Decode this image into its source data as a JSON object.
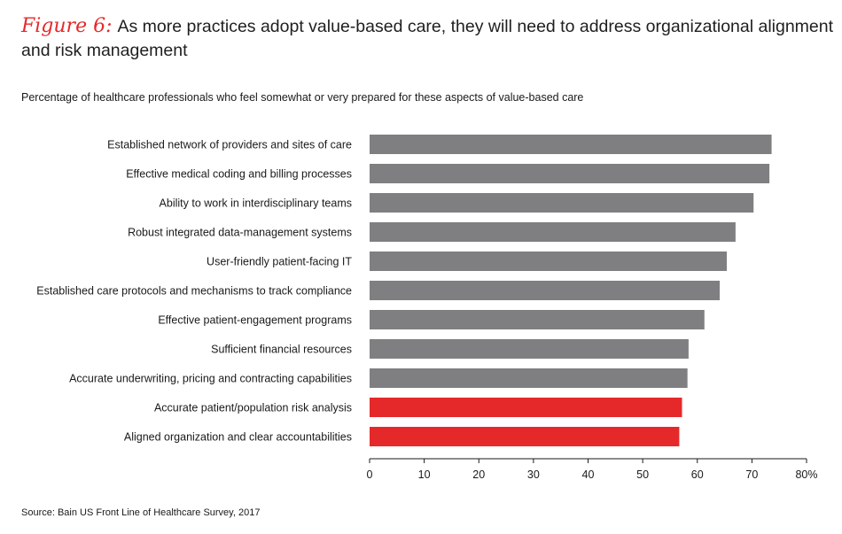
{
  "figure_label": "Figure 6:",
  "title": "As more practices adopt value-based care, they will need to address organizational alignment and risk management",
  "subtitle": "Percentage of healthcare professionals who feel somewhat or very prepared for these aspects of value-based care",
  "source": "Source: Bain US Front Line of Healthcare Survey, 2017",
  "colors": {
    "default_bar": "#7f7f82",
    "highlight_bar": "#e5292b",
    "figure_label": "#e5292b"
  },
  "chart_data": {
    "type": "bar",
    "orientation": "horizontal",
    "categories": [
      "Established network of providers and sites of care",
      "Effective medical coding and billing processes",
      "Ability to work in interdisciplinary teams",
      "Robust integrated data-management systems",
      "User-friendly patient-facing IT",
      "Established care protocols and mechanisms to track compliance",
      "Effective patient-engagement programs",
      "Sufficient financial resources",
      "Accurate underwriting, pricing and contracting capabilities",
      "Accurate patient/population risk analysis",
      "Aligned organization and clear accountabilities"
    ],
    "values": [
      73.6,
      73.2,
      70.3,
      67.0,
      65.4,
      64.1,
      61.3,
      58.4,
      58.2,
      57.2,
      56.7
    ],
    "highlighted": [
      false,
      false,
      false,
      false,
      false,
      false,
      false,
      false,
      false,
      true,
      true
    ],
    "xlim": [
      0,
      80
    ],
    "ticks": [
      "0",
      "10",
      "20",
      "30",
      "40",
      "50",
      "60",
      "70",
      "80%"
    ],
    "grid": false
  }
}
